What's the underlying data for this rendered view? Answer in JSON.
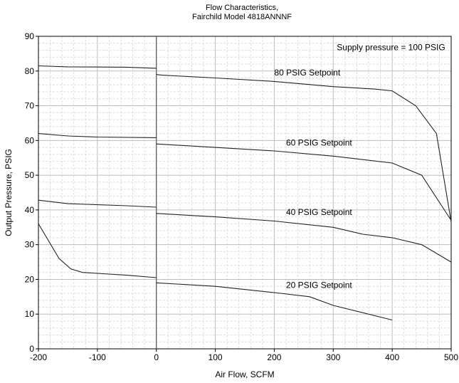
{
  "chart_data": {
    "type": "line",
    "title": [
      "Flow Characteristics,",
      "Fairchild Model 4818ANNNF"
    ],
    "xlabel": "Air Flow, SCFM",
    "ylabel": "Output Pressure, PSIG",
    "xlim": [
      -200,
      500
    ],
    "ylim": [
      0,
      90
    ],
    "x_ticks": [
      -200,
      -100,
      0,
      100,
      200,
      300,
      400,
      500
    ],
    "y_ticks": [
      0,
      10,
      20,
      30,
      40,
      50,
      60,
      70,
      80,
      90
    ],
    "grid": true,
    "annotations": [
      {
        "text": "Supply pressure = 100 PSIG",
        "x": 490,
        "y": 86
      },
      {
        "text": "80 PSIG Setpoint",
        "x": 200,
        "y": 78.7
      },
      {
        "text": "60 PSIG Setpoint",
        "x": 220,
        "y": 58.5
      },
      {
        "text": "40 PSIG Setpoint",
        "x": 220,
        "y": 38.5
      },
      {
        "text": "20 PSIG Setpoint",
        "x": 220,
        "y": 17.5
      }
    ],
    "series": [
      {
        "points": [
          [
            -200,
            81.5
          ],
          [
            -150,
            81.2
          ],
          [
            -50,
            81.1
          ],
          [
            0,
            80.8
          ]
        ],
        "points_b": [
          [
            0,
            79
          ],
          [
            10,
            78.8
          ],
          [
            100,
            78
          ],
          [
            200,
            77
          ],
          [
            300,
            75.5
          ],
          [
            370,
            74.8
          ],
          [
            400,
            74.3
          ],
          [
            440,
            70
          ],
          [
            475,
            62
          ],
          [
            500,
            36.5
          ]
        ]
      },
      {
        "points": [
          [
            -200,
            62
          ],
          [
            -150,
            61.3
          ],
          [
            -100,
            61
          ],
          [
            0,
            60.8
          ]
        ],
        "points_b": [
          [
            0,
            59
          ],
          [
            100,
            58
          ],
          [
            200,
            57
          ],
          [
            300,
            55.5
          ],
          [
            400,
            53.5
          ],
          [
            450,
            50
          ],
          [
            500,
            37
          ]
        ]
      },
      {
        "points": [
          [
            -200,
            42.8
          ],
          [
            -150,
            41.8
          ],
          [
            -50,
            41.2
          ],
          [
            0,
            40.8
          ]
        ],
        "points_b": [
          [
            0,
            39
          ],
          [
            100,
            38
          ],
          [
            200,
            36.8
          ],
          [
            300,
            35
          ],
          [
            350,
            33
          ],
          [
            400,
            32
          ],
          [
            450,
            30
          ],
          [
            500,
            25
          ]
        ]
      },
      {
        "points": [
          [
            -200,
            36
          ],
          [
            -165,
            26
          ],
          [
            -145,
            23
          ],
          [
            -125,
            22
          ],
          [
            -50,
            21.2
          ],
          [
            0,
            20.5
          ]
        ],
        "points_b": [
          [
            0,
            19
          ],
          [
            100,
            18
          ],
          [
            200,
            16.2
          ],
          [
            260,
            15
          ],
          [
            300,
            12.5
          ],
          [
            400,
            8.3
          ]
        ]
      }
    ]
  }
}
